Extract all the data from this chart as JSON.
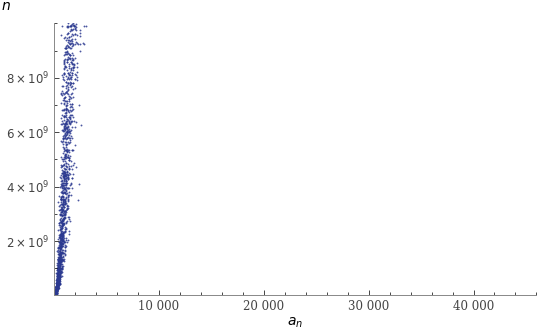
{
  "title": "",
  "xlabel": "a_n",
  "ylabel": "n",
  "xlim": [
    0,
    46000
  ],
  "ylim": [
    0,
    10000000000.0
  ],
  "xticks": [
    10000,
    20000,
    30000,
    40000
  ],
  "xtick_labels": [
    "10 000",
    "20 000",
    "30 000",
    "40 000"
  ],
  "yticks": [
    2000000000.0,
    4000000000.0,
    6000000000.0,
    8000000000.0
  ],
  "dot_color": "#2b3990",
  "dot_size": 1.8,
  "dot_alpha": 0.85,
  "background_color": "#ffffff",
  "max_an": 45000,
  "scale_factor": 4900,
  "noise_sigma": 0.55,
  "seed": 7
}
